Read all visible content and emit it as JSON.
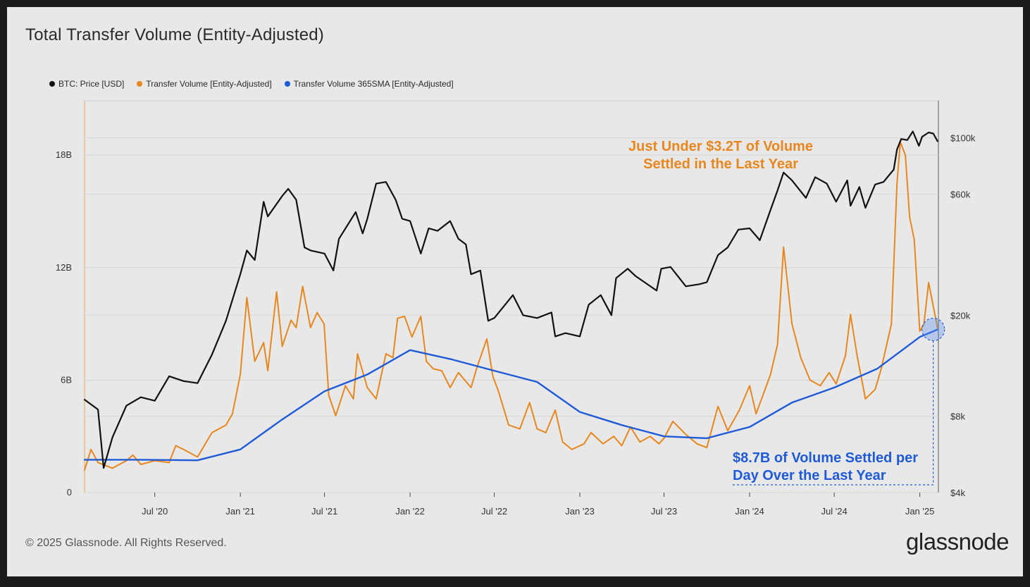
{
  "title": "Total Transfer Volume (Entity-Adjusted)",
  "footer": {
    "copyright": "© 2025 Glassnode. All Rights Reserved.",
    "brand": "glassnode"
  },
  "colors": {
    "price": "#111111",
    "volume": "#e8871e",
    "sma": "#1f5bd8",
    "annotation_orange": "#e8871e",
    "annotation_blue": "#1f5bd8"
  },
  "annotations": {
    "top_line1": "Just Under $3.2T of Volume",
    "top_line2": "Settled in the Last Year",
    "bottom_line1": "$8.7B of Volume Settled per",
    "bottom_line2": "Day Over the Last Year"
  },
  "chart_data": {
    "type": "line",
    "legend_position": "top-left",
    "grid": true,
    "x_ticks": [
      "Jul '20",
      "Jan '21",
      "Jul '21",
      "Jan '22",
      "Jul '22",
      "Jan '23",
      "Jul '23",
      "Jan '24",
      "Jul '24",
      "Jan '25"
    ],
    "x_range": [
      "2020-02-01",
      "2025-02-10"
    ],
    "y_left": {
      "ticks": [
        "0",
        "6B",
        "12B",
        "18B"
      ],
      "range": [
        0,
        20900000000
      ]
    },
    "y_right": {
      "ticks": [
        "$4k",
        "$8k",
        "$20k",
        "$60k",
        "$100k"
      ],
      "scale": "log",
      "range": [
        4000,
        140000
      ]
    },
    "series": [
      {
        "name": "BTC: Price [USD]",
        "axis": "right",
        "points": [
          [
            "2020-02-01",
            9300
          ],
          [
            "2020-03-01",
            8500
          ],
          [
            "2020-03-13",
            5000
          ],
          [
            "2020-04-01",
            6600
          ],
          [
            "2020-05-01",
            8800
          ],
          [
            "2020-06-01",
            9500
          ],
          [
            "2020-07-01",
            9200
          ],
          [
            "2020-08-01",
            11500
          ],
          [
            "2020-09-01",
            11000
          ],
          [
            "2020-10-01",
            10800
          ],
          [
            "2020-11-01",
            14000
          ],
          [
            "2020-12-01",
            19000
          ],
          [
            "2021-01-01",
            29000
          ],
          [
            "2021-01-15",
            36000
          ],
          [
            "2021-02-01",
            33000
          ],
          [
            "2021-02-20",
            56000
          ],
          [
            "2021-03-01",
            49000
          ],
          [
            "2021-04-01",
            59000
          ],
          [
            "2021-04-14",
            63000
          ],
          [
            "2021-05-01",
            57000
          ],
          [
            "2021-05-19",
            37000
          ],
          [
            "2021-06-01",
            36000
          ],
          [
            "2021-07-01",
            35000
          ],
          [
            "2021-07-20",
            30000
          ],
          [
            "2021-08-01",
            40000
          ],
          [
            "2021-09-06",
            51000
          ],
          [
            "2021-09-21",
            42000
          ],
          [
            "2021-10-01",
            48000
          ],
          [
            "2021-10-20",
            66000
          ],
          [
            "2021-11-10",
            67000
          ],
          [
            "2021-12-01",
            57000
          ],
          [
            "2021-12-15",
            48000
          ],
          [
            "2022-01-01",
            47000
          ],
          [
            "2022-01-24",
            35000
          ],
          [
            "2022-02-10",
            44000
          ],
          [
            "2022-03-01",
            43000
          ],
          [
            "2022-03-28",
            47000
          ],
          [
            "2022-04-15",
            40000
          ],
          [
            "2022-05-01",
            38000
          ],
          [
            "2022-05-12",
            29000
          ],
          [
            "2022-06-01",
            30000
          ],
          [
            "2022-06-18",
            19000
          ],
          [
            "2022-07-01",
            19500
          ],
          [
            "2022-08-10",
            24000
          ],
          [
            "2022-09-01",
            20000
          ],
          [
            "2022-10-01",
            19500
          ],
          [
            "2022-11-01",
            20500
          ],
          [
            "2022-11-09",
            16500
          ],
          [
            "2022-12-01",
            17000
          ],
          [
            "2023-01-01",
            16500
          ],
          [
            "2023-01-20",
            22000
          ],
          [
            "2023-02-15",
            24000
          ],
          [
            "2023-03-10",
            20000
          ],
          [
            "2023-03-20",
            28000
          ],
          [
            "2023-04-14",
            30500
          ],
          [
            "2023-05-01",
            28500
          ],
          [
            "2023-06-15",
            25000
          ],
          [
            "2023-06-25",
            30500
          ],
          [
            "2023-07-15",
            31000
          ],
          [
            "2023-08-17",
            26000
          ],
          [
            "2023-09-15",
            26500
          ],
          [
            "2023-10-01",
            27000
          ],
          [
            "2023-10-25",
            34500
          ],
          [
            "2023-11-15",
            37000
          ],
          [
            "2023-12-08",
            43500
          ],
          [
            "2024-01-01",
            44000
          ],
          [
            "2024-01-23",
            39500
          ],
          [
            "2024-02-15",
            52000
          ],
          [
            "2024-03-01",
            62000
          ],
          [
            "2024-03-14",
            73000
          ],
          [
            "2024-04-01",
            68000
          ],
          [
            "2024-05-01",
            58000
          ],
          [
            "2024-05-21",
            70000
          ],
          [
            "2024-06-15",
            66000
          ],
          [
            "2024-07-05",
            56000
          ],
          [
            "2024-07-29",
            68000
          ],
          [
            "2024-08-05",
            54000
          ],
          [
            "2024-08-24",
            64000
          ],
          [
            "2024-09-06",
            53000
          ],
          [
            "2024-09-27",
            65500
          ],
          [
            "2024-10-15",
            67000
          ],
          [
            "2024-10-29",
            72000
          ],
          [
            "2024-11-06",
            75000
          ],
          [
            "2024-11-13",
            90000
          ],
          [
            "2024-11-22",
            99000
          ],
          [
            "2024-12-05",
            98000
          ],
          [
            "2024-12-17",
            106000
          ],
          [
            "2024-12-30",
            93000
          ],
          [
            "2025-01-06",
            101000
          ],
          [
            "2025-01-20",
            105000
          ],
          [
            "2025-01-30",
            104000
          ],
          [
            "2025-02-08",
            97000
          ]
        ]
      },
      {
        "name": "Transfer Volume [Entity-Adjusted]",
        "axis": "left",
        "points": [
          [
            "2020-02-01",
            1200000000
          ],
          [
            "2020-02-15",
            2300000000
          ],
          [
            "2020-03-01",
            1600000000
          ],
          [
            "2020-04-01",
            1300000000
          ],
          [
            "2020-05-01",
            1700000000
          ],
          [
            "2020-05-15",
            2000000000
          ],
          [
            "2020-06-01",
            1500000000
          ],
          [
            "2020-07-01",
            1700000000
          ],
          [
            "2020-08-01",
            1600000000
          ],
          [
            "2020-08-15",
            2500000000
          ],
          [
            "2020-09-01",
            2300000000
          ],
          [
            "2020-10-01",
            1900000000
          ],
          [
            "2020-11-01",
            3200000000
          ],
          [
            "2020-12-01",
            3600000000
          ],
          [
            "2020-12-15",
            4200000000
          ],
          [
            "2021-01-01",
            6300000000
          ],
          [
            "2021-01-15",
            10400000000
          ],
          [
            "2021-02-01",
            7000000000
          ],
          [
            "2021-02-20",
            8000000000
          ],
          [
            "2021-03-01",
            6500000000
          ],
          [
            "2021-03-20",
            10700000000
          ],
          [
            "2021-04-01",
            7800000000
          ],
          [
            "2021-04-20",
            9200000000
          ],
          [
            "2021-05-01",
            8800000000
          ],
          [
            "2021-05-15",
            11000000000
          ],
          [
            "2021-06-01",
            8800000000
          ],
          [
            "2021-06-15",
            9600000000
          ],
          [
            "2021-06-30",
            9000000000
          ],
          [
            "2021-07-10",
            5200000000
          ],
          [
            "2021-07-25",
            4100000000
          ],
          [
            "2021-08-15",
            5700000000
          ],
          [
            "2021-09-01",
            5000000000
          ],
          [
            "2021-09-10",
            7400000000
          ],
          [
            "2021-10-01",
            5600000000
          ],
          [
            "2021-10-20",
            5000000000
          ],
          [
            "2021-11-10",
            7400000000
          ],
          [
            "2021-11-25",
            7200000000
          ],
          [
            "2021-12-05",
            9300000000
          ],
          [
            "2021-12-20",
            9400000000
          ],
          [
            "2022-01-05",
            8300000000
          ],
          [
            "2022-01-24",
            9400000000
          ],
          [
            "2022-02-05",
            7000000000
          ],
          [
            "2022-02-20",
            6600000000
          ],
          [
            "2022-03-10",
            6500000000
          ],
          [
            "2022-03-28",
            5600000000
          ],
          [
            "2022-04-15",
            6400000000
          ],
          [
            "2022-05-12",
            5600000000
          ],
          [
            "2022-05-25",
            6700000000
          ],
          [
            "2022-06-15",
            8200000000
          ],
          [
            "2022-06-28",
            6200000000
          ],
          [
            "2022-07-10",
            5400000000
          ],
          [
            "2022-08-01",
            3600000000
          ],
          [
            "2022-08-25",
            3400000000
          ],
          [
            "2022-09-15",
            4800000000
          ],
          [
            "2022-10-01",
            3400000000
          ],
          [
            "2022-10-20",
            3200000000
          ],
          [
            "2022-11-09",
            4400000000
          ],
          [
            "2022-11-25",
            2700000000
          ],
          [
            "2022-12-15",
            2300000000
          ],
          [
            "2023-01-10",
            2600000000
          ],
          [
            "2023-01-25",
            3200000000
          ],
          [
            "2023-02-20",
            2600000000
          ],
          [
            "2023-03-15",
            3000000000
          ],
          [
            "2023-04-01",
            2500000000
          ],
          [
            "2023-04-20",
            3500000000
          ],
          [
            "2023-05-10",
            2700000000
          ],
          [
            "2023-06-01",
            3000000000
          ],
          [
            "2023-06-20",
            2600000000
          ],
          [
            "2023-07-01",
            2900000000
          ],
          [
            "2023-07-20",
            3800000000
          ],
          [
            "2023-08-17",
            3100000000
          ],
          [
            "2023-09-10",
            2600000000
          ],
          [
            "2023-10-01",
            2400000000
          ],
          [
            "2023-10-25",
            4600000000
          ],
          [
            "2023-11-15",
            3300000000
          ],
          [
            "2023-12-10",
            4400000000
          ],
          [
            "2024-01-01",
            5700000000
          ],
          [
            "2024-01-15",
            4200000000
          ],
          [
            "2024-02-15",
            6300000000
          ],
          [
            "2024-03-01",
            7900000000
          ],
          [
            "2024-03-14",
            13100000000
          ],
          [
            "2024-04-01",
            9000000000
          ],
          [
            "2024-04-20",
            7200000000
          ],
          [
            "2024-05-10",
            6000000000
          ],
          [
            "2024-06-01",
            5700000000
          ],
          [
            "2024-06-20",
            6400000000
          ],
          [
            "2024-07-05",
            5800000000
          ],
          [
            "2024-07-25",
            7300000000
          ],
          [
            "2024-08-05",
            9500000000
          ],
          [
            "2024-08-20",
            7200000000
          ],
          [
            "2024-09-06",
            5000000000
          ],
          [
            "2024-09-27",
            5500000000
          ],
          [
            "2024-10-10",
            6600000000
          ],
          [
            "2024-11-01",
            9000000000
          ],
          [
            "2024-11-13",
            16500000000
          ],
          [
            "2024-11-20",
            18700000000
          ],
          [
            "2024-12-01",
            18000000000
          ],
          [
            "2024-12-10",
            14700000000
          ],
          [
            "2024-12-20",
            13500000000
          ],
          [
            "2025-01-01",
            8600000000
          ],
          [
            "2025-01-10",
            9000000000
          ],
          [
            "2025-01-20",
            11200000000
          ],
          [
            "2025-02-08",
            8800000000
          ]
        ]
      },
      {
        "name": "Transfer Volume 365SMA [Entity-Adjusted]",
        "axis": "left",
        "points": [
          [
            "2020-02-01",
            1750000000
          ],
          [
            "2020-06-01",
            1750000000
          ],
          [
            "2020-10-01",
            1720000000
          ],
          [
            "2021-01-01",
            2300000000
          ],
          [
            "2021-04-01",
            3900000000
          ],
          [
            "2021-07-01",
            5400000000
          ],
          [
            "2021-10-01",
            6300000000
          ],
          [
            "2022-01-01",
            7600000000
          ],
          [
            "2022-04-01",
            7100000000
          ],
          [
            "2022-07-01",
            6500000000
          ],
          [
            "2022-10-01",
            5900000000
          ],
          [
            "2023-01-01",
            4300000000
          ],
          [
            "2023-04-01",
            3600000000
          ],
          [
            "2023-07-01",
            3000000000
          ],
          [
            "2023-10-01",
            2900000000
          ],
          [
            "2024-01-01",
            3500000000
          ],
          [
            "2024-04-01",
            4800000000
          ],
          [
            "2024-07-01",
            5600000000
          ],
          [
            "2024-10-01",
            6600000000
          ],
          [
            "2025-01-01",
            8300000000
          ],
          [
            "2025-02-08",
            8700000000
          ]
        ]
      }
    ]
  }
}
